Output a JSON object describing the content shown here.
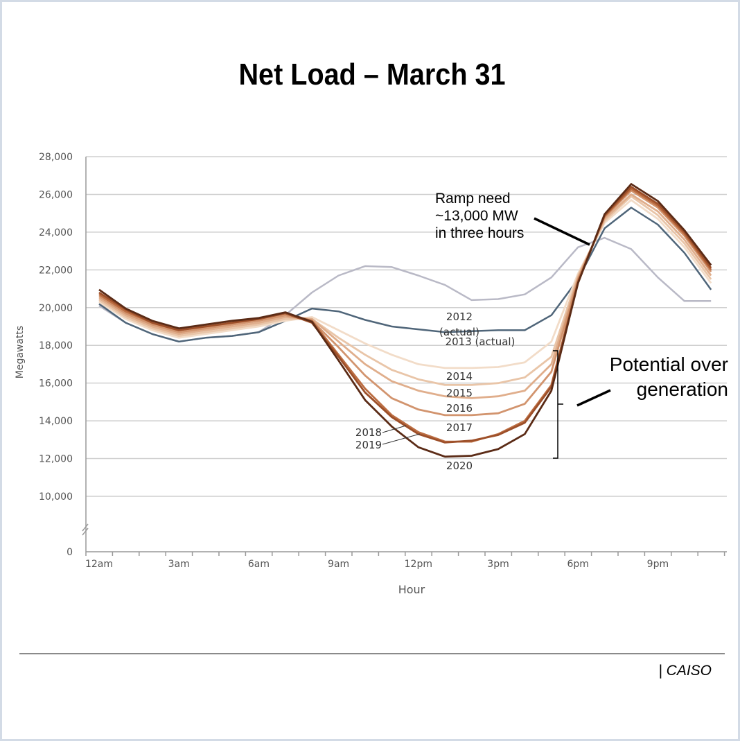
{
  "chart_data": {
    "type": "line",
    "title": "Net Load – March 31",
    "xlabel": "Hour",
    "ylabel": "Megawatts",
    "x": [
      0,
      1,
      2,
      3,
      4,
      5,
      6,
      7,
      8,
      9,
      10,
      11,
      12,
      13,
      14,
      15,
      16,
      17,
      18,
      19,
      20,
      21,
      22,
      23
    ],
    "x_tick_labels": [
      "12am",
      "3am",
      "6am",
      "9am",
      "12pm",
      "3pm",
      "6pm",
      "9pm"
    ],
    "x_tick_hours": [
      0,
      3,
      6,
      9,
      12,
      15,
      18,
      21
    ],
    "y_ticks": [
      0,
      10000,
      12000,
      14000,
      16000,
      18000,
      20000,
      22000,
      24000,
      26000,
      28000
    ],
    "y_tick_labels": [
      "0",
      "10,000",
      "12,000",
      "14,000",
      "16,000",
      "18,000",
      "20,000",
      "22,000",
      "24,000",
      "26,000",
      "28,000"
    ],
    "ylim": [
      10000,
      28000
    ],
    "y_axis_break": true,
    "grid": true,
    "series": [
      {
        "name": "2012",
        "label": "2012",
        "label2": "(actual)",
        "color": "#b9b9c6",
        "values": [
          20100,
          19200,
          18600,
          18200,
          18400,
          18500,
          18700,
          19600,
          20800,
          21700,
          22200,
          22150,
          21700,
          21200,
          20400,
          20450,
          20700,
          21600,
          23200,
          23700,
          23100,
          21600,
          20350,
          20350
        ]
      },
      {
        "name": "2013",
        "label": "2013 (actual)",
        "color": "#4f6579",
        "values": [
          20200,
          19200,
          18600,
          18200,
          18400,
          18500,
          18700,
          19300,
          19950,
          19800,
          19350,
          19000,
          18850,
          18700,
          18750,
          18800,
          18800,
          19600,
          21500,
          24200,
          25300,
          24400,
          22900,
          20950
        ]
      },
      {
        "name": "2014",
        "label": "2014",
        "color": "#f2dcc8",
        "values": [
          20300,
          19400,
          18800,
          18400,
          18600,
          18800,
          19000,
          19300,
          19500,
          18800,
          18100,
          17500,
          17000,
          16800,
          16800,
          16850,
          17100,
          18200,
          21800,
          24500,
          25700,
          24700,
          23200,
          21300
        ]
      },
      {
        "name": "2015",
        "label": "2015",
        "color": "#e9c5a8",
        "values": [
          20400,
          19500,
          18900,
          18500,
          18700,
          18900,
          19100,
          19400,
          19400,
          18400,
          17500,
          16700,
          16200,
          15900,
          15900,
          16000,
          16300,
          17400,
          21700,
          24600,
          25900,
          24900,
          23400,
          21500
        ]
      },
      {
        "name": "2016",
        "label": "2016",
        "color": "#e0ae8c",
        "values": [
          20500,
          19600,
          19000,
          18600,
          18800,
          19000,
          19200,
          19500,
          19400,
          18200,
          17000,
          16100,
          15600,
          15300,
          15200,
          15300,
          15600,
          17000,
          21600,
          24700,
          26000,
          25100,
          23600,
          21700
        ]
      },
      {
        "name": "2017",
        "label": "2017",
        "color": "#d2946e",
        "values": [
          20600,
          19700,
          19100,
          18700,
          18900,
          19100,
          19300,
          19600,
          19300,
          17900,
          16400,
          15200,
          14600,
          14300,
          14300,
          14400,
          14900,
          16600,
          21500,
          24800,
          26200,
          25300,
          23800,
          21900
        ]
      },
      {
        "name": "2018",
        "label": "2018",
        "color": "#bb6d42",
        "values": [
          20700,
          19800,
          19200,
          18800,
          19000,
          19200,
          19400,
          19700,
          19300,
          17500,
          15700,
          14300,
          13400,
          12900,
          12900,
          13300,
          14000,
          15900,
          21400,
          24850,
          26300,
          25400,
          23900,
          22000
        ]
      },
      {
        "name": "2019",
        "label": "2019",
        "color": "#9d4f29",
        "values": [
          20800,
          19900,
          19200,
          18800,
          19000,
          19200,
          19400,
          19700,
          19200,
          17400,
          15500,
          14200,
          13300,
          12850,
          12950,
          13250,
          13900,
          15800,
          21300,
          24900,
          26400,
          25500,
          24000,
          22100
        ]
      },
      {
        "name": "2020",
        "label": "2020",
        "color": "#5b2b16",
        "values": [
          20950,
          19950,
          19300,
          18900,
          19100,
          19300,
          19450,
          19750,
          19250,
          17200,
          15100,
          13700,
          12600,
          12100,
          12150,
          12500,
          13300,
          15600,
          21300,
          24950,
          26550,
          25650,
          24100,
          22250
        ]
      }
    ],
    "annotations": {
      "ramp": [
        "Ramp need",
        "~13,000 MW",
        "in three hours"
      ],
      "overgen": [
        "Potential over",
        "generation"
      ]
    }
  },
  "source": "| CAISO"
}
